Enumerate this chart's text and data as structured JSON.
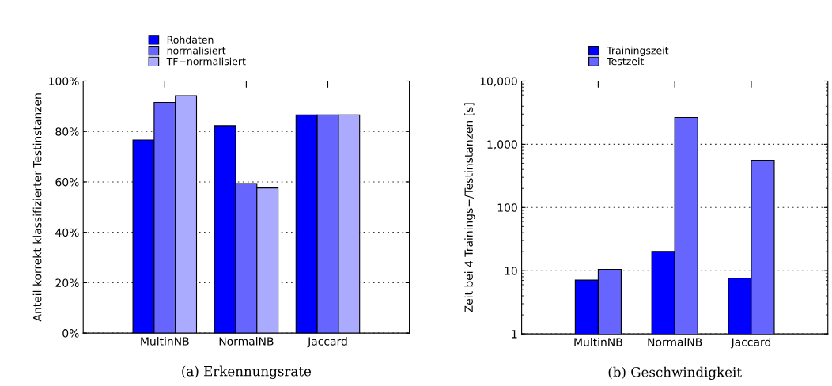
{
  "chart_data": [
    {
      "type": "bar",
      "title": "(a) Erkennungsrate",
      "ylabel": "Anteil korrekt klassifizierter Testinstanzen",
      "categories": [
        "MultinNB",
        "NormalNB",
        "Jaccard"
      ],
      "series": [
        {
          "name": "Rohdaten",
          "color": "#0000ff",
          "values": [
            76.6,
            82.3,
            86.6
          ]
        },
        {
          "name": "normalisiert",
          "color": "#6666ff",
          "values": [
            91.5,
            59.3,
            86.6
          ]
        },
        {
          "name": "TF−normalisiert",
          "color": "#aaaaff",
          "values": [
            94.2,
            57.6,
            86.6
          ]
        }
      ],
      "ylim": [
        0,
        100
      ],
      "yticks": [
        {
          "value": 0,
          "label": "0%"
        },
        {
          "value": 20,
          "label": "20%"
        },
        {
          "value": 40,
          "label": "40%"
        },
        {
          "value": 60,
          "label": "60%"
        },
        {
          "value": 80,
          "label": "80%"
        },
        {
          "value": 100,
          "label": "100%"
        }
      ],
      "grid": "y",
      "legend": "top"
    },
    {
      "type": "bar",
      "title": "(b) Geschwindigkeit",
      "ylabel": "Zeit bei 4 Trainings−/Testinstanzen [s]",
      "categories": [
        "MultinNB",
        "NormalNB",
        "Jaccard"
      ],
      "series": [
        {
          "name": "Trainingszeit",
          "color": "#0000ff",
          "values": [
            7.1,
            20.2,
            7.6
          ]
        },
        {
          "name": "Testzeit",
          "color": "#6666ff",
          "values": [
            10.5,
            2650,
            561
          ]
        }
      ],
      "log": true,
      "ylim": [
        1,
        10000
      ],
      "yticks": [
        1,
        10,
        100,
        {
          "value": 1000,
          "label": "1,000"
        },
        {
          "value": 10000,
          "label": "10,000"
        }
      ],
      "grid": "y",
      "legend": "top"
    }
  ]
}
